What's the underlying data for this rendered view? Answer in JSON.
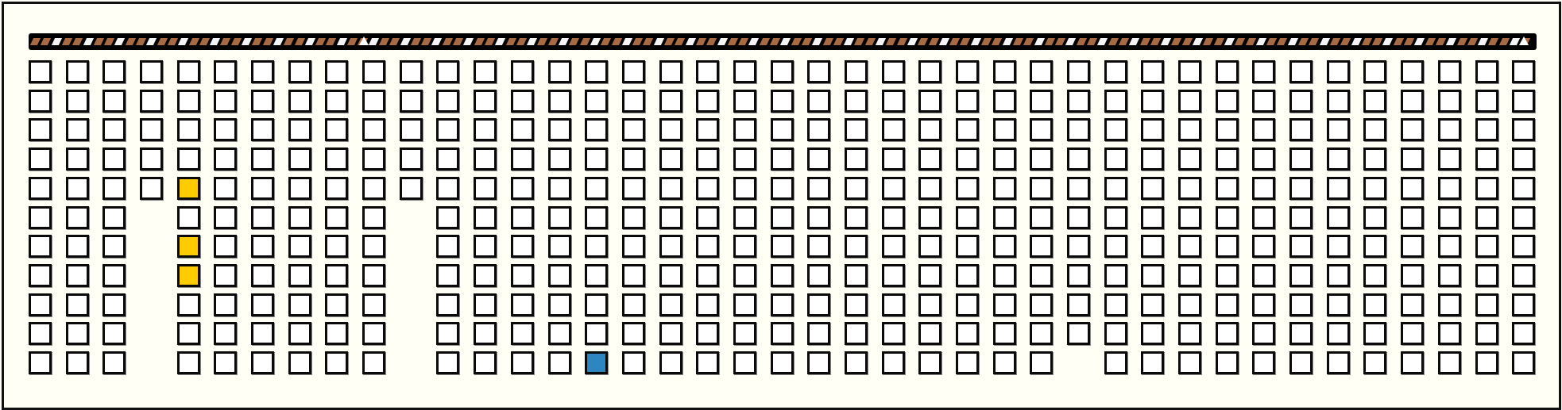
{
  "board": {
    "columns": 41,
    "rows": 11,
    "missing_cells": [
      [
        5,
        3
      ],
      [
        6,
        3
      ],
      [
        7,
        3
      ],
      [
        8,
        3
      ],
      [
        9,
        3
      ],
      [
        10,
        3
      ],
      [
        5,
        10
      ],
      [
        6,
        10
      ],
      [
        7,
        10
      ],
      [
        8,
        10
      ],
      [
        9,
        10
      ],
      [
        10,
        10
      ],
      [
        10,
        28
      ]
    ],
    "highlighted_cells": [
      {
        "row": 4,
        "col": 4,
        "color": "#ffcc00"
      },
      {
        "row": 6,
        "col": 4,
        "color": "#ffcc00"
      },
      {
        "row": 7,
        "col": 4,
        "color": "#ffcc00"
      },
      {
        "row": 10,
        "col": 15,
        "color": "#2e86c1"
      }
    ],
    "empty_cell_color": "#ffffff"
  },
  "progress_bar": {
    "stripe_colors": [
      "#a86a43",
      "#f4f4f4"
    ],
    "marker_positions": [
      0.22,
      1.0
    ]
  },
  "colors": {
    "background": "#fffff5",
    "outline": "#111111"
  }
}
